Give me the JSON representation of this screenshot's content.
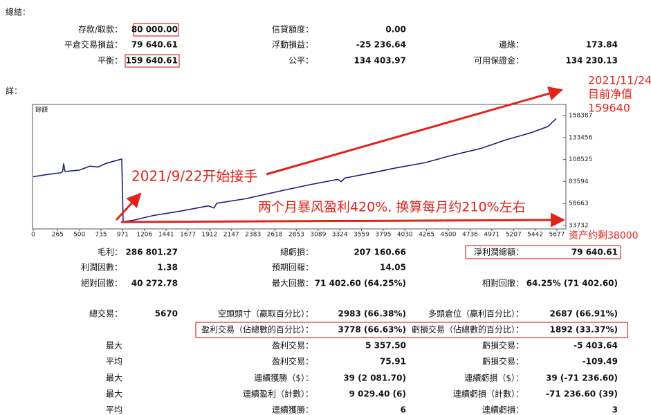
{
  "summary": {
    "title": "總結：",
    "rows": [
      [
        "存款/取款：",
        "80 000.00",
        "信貸額度：",
        "0.00",
        null,
        null
      ],
      [
        "平倉交易損益：",
        "79 640.61",
        "浮動損益：",
        "-25 236.64",
        "邊緣：",
        "173.84"
      ],
      [
        "平衡：",
        "159 640.61",
        "公平：",
        "134 403.97",
        "可用保證金：",
        "134 230.13"
      ]
    ]
  },
  "details": {
    "title": "詳：",
    "rows": [
      [
        "毛利：",
        "286 801.27",
        "總虧損：",
        "207 160.66",
        "淨利潤總額：",
        "79 640.61"
      ],
      [
        "利潤因數：",
        "1.38",
        "預期回報：",
        "14.05",
        null,
        null
      ],
      [
        "絕對回撤：",
        "40 272.78",
        "最大回撤：",
        "71 402.60 (64.25%)",
        "相對回撤：",
        "64.25% (71 402.60)"
      ],
      [
        "總交易：",
        "5670",
        "空頭頭寸（贏取百分比）：",
        "2983 (66.38%)",
        "多頭倉位（贏利百分比）：",
        "2687 (66.91%)"
      ],
      [
        null,
        null,
        "盈利交易（佔總數的百分比）：",
        "3778 (66.63%)",
        "虧損交易（佔總數的百分比）：",
        "1892 (33.37%)"
      ],
      [
        "最大",
        null,
        "盈利交易：",
        "5 357.50",
        "虧損交易：",
        "-5 403.64"
      ],
      [
        "平均",
        null,
        "盈利交易：",
        "75.91",
        "虧損交易：",
        "-109.49"
      ],
      [
        "最大",
        null,
        "連續獲勝（$）：",
        "39 (2 081.70)",
        "連續虧損（$）：",
        "39 (-71 236.60)"
      ],
      [
        "最大",
        null,
        "連續盈利（計數）：",
        "9 029.40 (6)",
        "連續虧損（計數）：",
        "-71 236.60 (39)"
      ],
      [
        "平均",
        null,
        "連續獲勝：",
        "6",
        "連續虧損：",
        "3"
      ]
    ]
  },
  "chart_data": {
    "type": "line",
    "title": "餘額",
    "color": "#1a1f7a",
    "x": [
      0,
      150,
      300,
      320,
      330,
      345,
      500,
      615,
      700,
      800,
      920,
      960,
      975,
      1100,
      1300,
      1600,
      1900,
      1960,
      1990,
      2300,
      2730,
      3000,
      3300,
      3340,
      3380,
      3700,
      3930,
      4250,
      4530,
      4850,
      5130,
      5400,
      5580,
      5670
    ],
    "values": [
      89000,
      91500,
      93500,
      95500,
      104000,
      95000,
      96500,
      101000,
      100000,
      104500,
      108000,
      109000,
      38000,
      40000,
      45000,
      50000,
      56000,
      53500,
      59000,
      64000,
      74000,
      80000,
      86000,
      83500,
      87500,
      94000,
      99000,
      105000,
      113000,
      121000,
      131000,
      139000,
      146000,
      155000
    ],
    "xlim": [
      0,
      5775
    ],
    "ylim": [
      29787,
      171011
    ],
    "xticks": [
      0,
      265,
      500,
      735,
      971,
      1206,
      1441,
      1677,
      1912,
      2147,
      2383,
      2618,
      2853,
      3089,
      3324,
      3559,
      3795,
      4030,
      4265,
      4500,
      4736,
      4971,
      5207,
      5442,
      5677
    ],
    "yticks": [
      33732,
      58663,
      83594,
      108525,
      133456,
      158387
    ],
    "annotations": [
      "2021/11/24",
      "目前净值",
      "159640",
      "2021/9/22开始接手",
      "两个月暴风盈利420%, 换算每月约210%左右",
      "资产约剩38000"
    ]
  }
}
